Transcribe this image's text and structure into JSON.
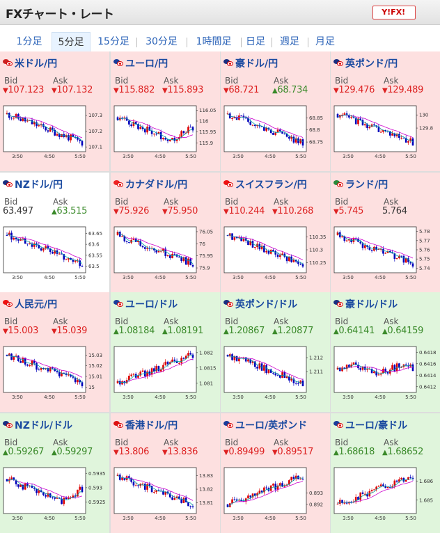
{
  "header": {
    "title": "FXチャート・レート",
    "logo": "Y!FX!"
  },
  "tabs": [
    {
      "label": "1分足",
      "active": false
    },
    {
      "label": "5分足",
      "active": true
    },
    {
      "label": "15分足",
      "active": false
    },
    {
      "label": "30分足",
      "active": false
    },
    {
      "label": "1時間足",
      "active": false
    },
    {
      "label": "日足",
      "active": false
    },
    {
      "label": "週足",
      "active": false
    },
    {
      "label": "月足",
      "active": false
    }
  ],
  "labels": {
    "bid": "Bid",
    "ask": "Ask",
    "arrow_up": "▲",
    "arrow_down": "▼"
  },
  "colors": {
    "down_bg": "#fde0e0",
    "up_bg": "#e0f5dc",
    "down_text": "#d22222",
    "up_text": "#3a8a2a",
    "pair_text": "#1a4aa0",
    "ma_line": "#cc00cc",
    "fast_line": "#00a0a0"
  },
  "x_ticks": [
    "3:50",
    "4:50",
    "5:50"
  ],
  "pairs": [
    {
      "name": "米ドル/円",
      "flags": [
        "us",
        "jp"
      ],
      "state": "down",
      "bid": "107.123",
      "bid_dir": "down",
      "ask": "107.132",
      "ask_dir": "down",
      "chart_data": {
        "type": "candlestick",
        "trend": "down",
        "y_ticks": [
          "107.3",
          "107.2",
          "107.1"
        ],
        "ylim": [
          107.07,
          107.36
        ]
      }
    },
    {
      "name": "ユーロ/円",
      "flags": [
        "eu",
        "jp"
      ],
      "state": "down",
      "bid": "115.882",
      "bid_dir": "down",
      "ask": "115.893",
      "ask_dir": "down",
      "chart_data": {
        "type": "candlestick",
        "trend": "dip",
        "y_ticks": [
          "116.05",
          "116",
          "115.95",
          "115.9"
        ],
        "ylim": [
          115.86,
          116.07
        ]
      }
    },
    {
      "name": "豪ドル/円",
      "flags": [
        "au",
        "jp"
      ],
      "state": "down",
      "bid": "68.721",
      "bid_dir": "down",
      "ask": "68.734",
      "ask_dir": "up",
      "chart_data": {
        "type": "candlestick",
        "trend": "down",
        "y_ticks": [
          "68.85",
          "68.8",
          "68.75"
        ],
        "ylim": [
          68.71,
          68.9
        ]
      }
    },
    {
      "name": "英ポンド/円",
      "flags": [
        "uk",
        "jp"
      ],
      "state": "down",
      "bid": "129.476",
      "bid_dir": "down",
      "ask": "129.489",
      "ask_dir": "down",
      "chart_data": {
        "type": "candlestick",
        "trend": "down",
        "y_ticks": [
          "130",
          "129.8"
        ],
        "ylim": [
          129.44,
          130.14
        ]
      }
    },
    {
      "name": "NZドル/円",
      "flags": [
        "nz",
        "jp"
      ],
      "state": "neutral",
      "bid": "63.497",
      "bid_dir": "none",
      "ask": "63.515",
      "ask_dir": "up",
      "chart_data": {
        "type": "candlestick",
        "trend": "down",
        "y_ticks": [
          "63.65",
          "63.6",
          "63.55",
          "63.5"
        ],
        "ylim": [
          63.47,
          63.68
        ]
      }
    },
    {
      "name": "カナダドル/円",
      "flags": [
        "ca",
        "jp"
      ],
      "state": "down",
      "bid": "75.926",
      "bid_dir": "down",
      "ask": "75.950",
      "ask_dir": "down",
      "chart_data": {
        "type": "candlestick",
        "trend": "down",
        "y_ticks": [
          "76.05",
          "76",
          "75.95",
          "75.9"
        ],
        "ylim": [
          75.88,
          76.07
        ]
      }
    },
    {
      "name": "スイスフラン/円",
      "flags": [
        "ch",
        "jp"
      ],
      "state": "down",
      "bid": "110.244",
      "bid_dir": "down",
      "ask": "110.268",
      "ask_dir": "down",
      "chart_data": {
        "type": "candlestick",
        "trend": "down",
        "y_ticks": [
          "110.35",
          "110.3",
          "110.25"
        ],
        "ylim": [
          110.21,
          110.39
        ]
      }
    },
    {
      "name": "ランド/円",
      "flags": [
        "za",
        "jp"
      ],
      "state": "down",
      "bid": "5.745",
      "bid_dir": "down",
      "ask": "5.764",
      "ask_dir": "none",
      "chart_data": {
        "type": "candlestick",
        "trend": "down",
        "y_ticks": [
          "5.78",
          "5.77",
          "5.76",
          "5.75",
          "5.74"
        ],
        "ylim": [
          5.735,
          5.785
        ]
      }
    },
    {
      "name": "人民元/円",
      "flags": [
        "cn",
        "jp"
      ],
      "state": "down",
      "bid": "15.003",
      "bid_dir": "down",
      "ask": "15.039",
      "ask_dir": "down",
      "chart_data": {
        "type": "candlestick",
        "trend": "down",
        "y_ticks": [
          "15.03",
          "15.02",
          "15.01",
          "15"
        ],
        "ylim": [
          14.995,
          15.038
        ]
      }
    },
    {
      "name": "ユーロ/ドル",
      "flags": [
        "eu",
        "us"
      ],
      "state": "up",
      "bid": "1.08184",
      "bid_dir": "up",
      "ask": "1.08191",
      "ask_dir": "up",
      "chart_data": {
        "type": "candlestick",
        "trend": "up",
        "y_ticks": [
          "1.082",
          "1.0815",
          "1.081"
        ],
        "ylim": [
          1.0807,
          1.0822
        ]
      }
    },
    {
      "name": "英ポンド/ドル",
      "flags": [
        "uk",
        "us"
      ],
      "state": "up",
      "bid": "1.20867",
      "bid_dir": "up",
      "ask": "1.20877",
      "ask_dir": "up",
      "chart_data": {
        "type": "candlestick",
        "trend": "down",
        "y_ticks": [
          "1.212",
          "1.211"
        ],
        "ylim": [
          1.2095,
          1.2128
        ]
      }
    },
    {
      "name": "豪ドル/ドル",
      "flags": [
        "au",
        "us"
      ],
      "state": "up",
      "bid": "0.64141",
      "bid_dir": "up",
      "ask": "0.64159",
      "ask_dir": "up",
      "chart_data": {
        "type": "candlestick",
        "trend": "flat",
        "y_ticks": [
          "0.6418",
          "0.6416",
          "0.6414",
          "0.6412"
        ],
        "ylim": [
          0.6411,
          0.6419
        ]
      }
    },
    {
      "name": "NZドル/ドル",
      "flags": [
        "nz",
        "us"
      ],
      "state": "up",
      "bid": "0.59267",
      "bid_dir": "up",
      "ask": "0.59297",
      "ask_dir": "up",
      "chart_data": {
        "type": "candlestick",
        "trend": "dip",
        "y_ticks": [
          "0.5935",
          "0.593",
          "0.5925"
        ],
        "ylim": [
          0.5921,
          0.5937
        ]
      }
    },
    {
      "name": "香港ドル/円",
      "flags": [
        "hk",
        "jp"
      ],
      "state": "down",
      "bid": "13.806",
      "bid_dir": "down",
      "ask": "13.836",
      "ask_dir": "down",
      "chart_data": {
        "type": "candlestick",
        "trend": "down",
        "y_ticks": [
          "13.83",
          "13.82",
          "13.81"
        ],
        "ylim": [
          13.802,
          13.836
        ]
      }
    },
    {
      "name": "ユーロ/英ポンド",
      "flags": [
        "eu",
        "uk"
      ],
      "state": "down",
      "bid": "0.89499",
      "bid_dir": "down",
      "ask": "0.89517",
      "ask_dir": "down",
      "chart_data": {
        "type": "candlestick",
        "trend": "up",
        "y_ticks": [
          "0.893",
          "0.892"
        ],
        "ylim": [
          0.8912,
          0.8952
        ]
      }
    },
    {
      "name": "ユーロ/豪ドル",
      "flags": [
        "eu",
        "au"
      ],
      "state": "up",
      "bid": "1.68618",
      "bid_dir": "up",
      "ask": "1.68652",
      "ask_dir": "up",
      "chart_data": {
        "type": "candlestick",
        "trend": "up",
        "y_ticks": [
          "1.686",
          "1.685"
        ],
        "ylim": [
          1.6843,
          1.6867
        ]
      }
    }
  ]
}
